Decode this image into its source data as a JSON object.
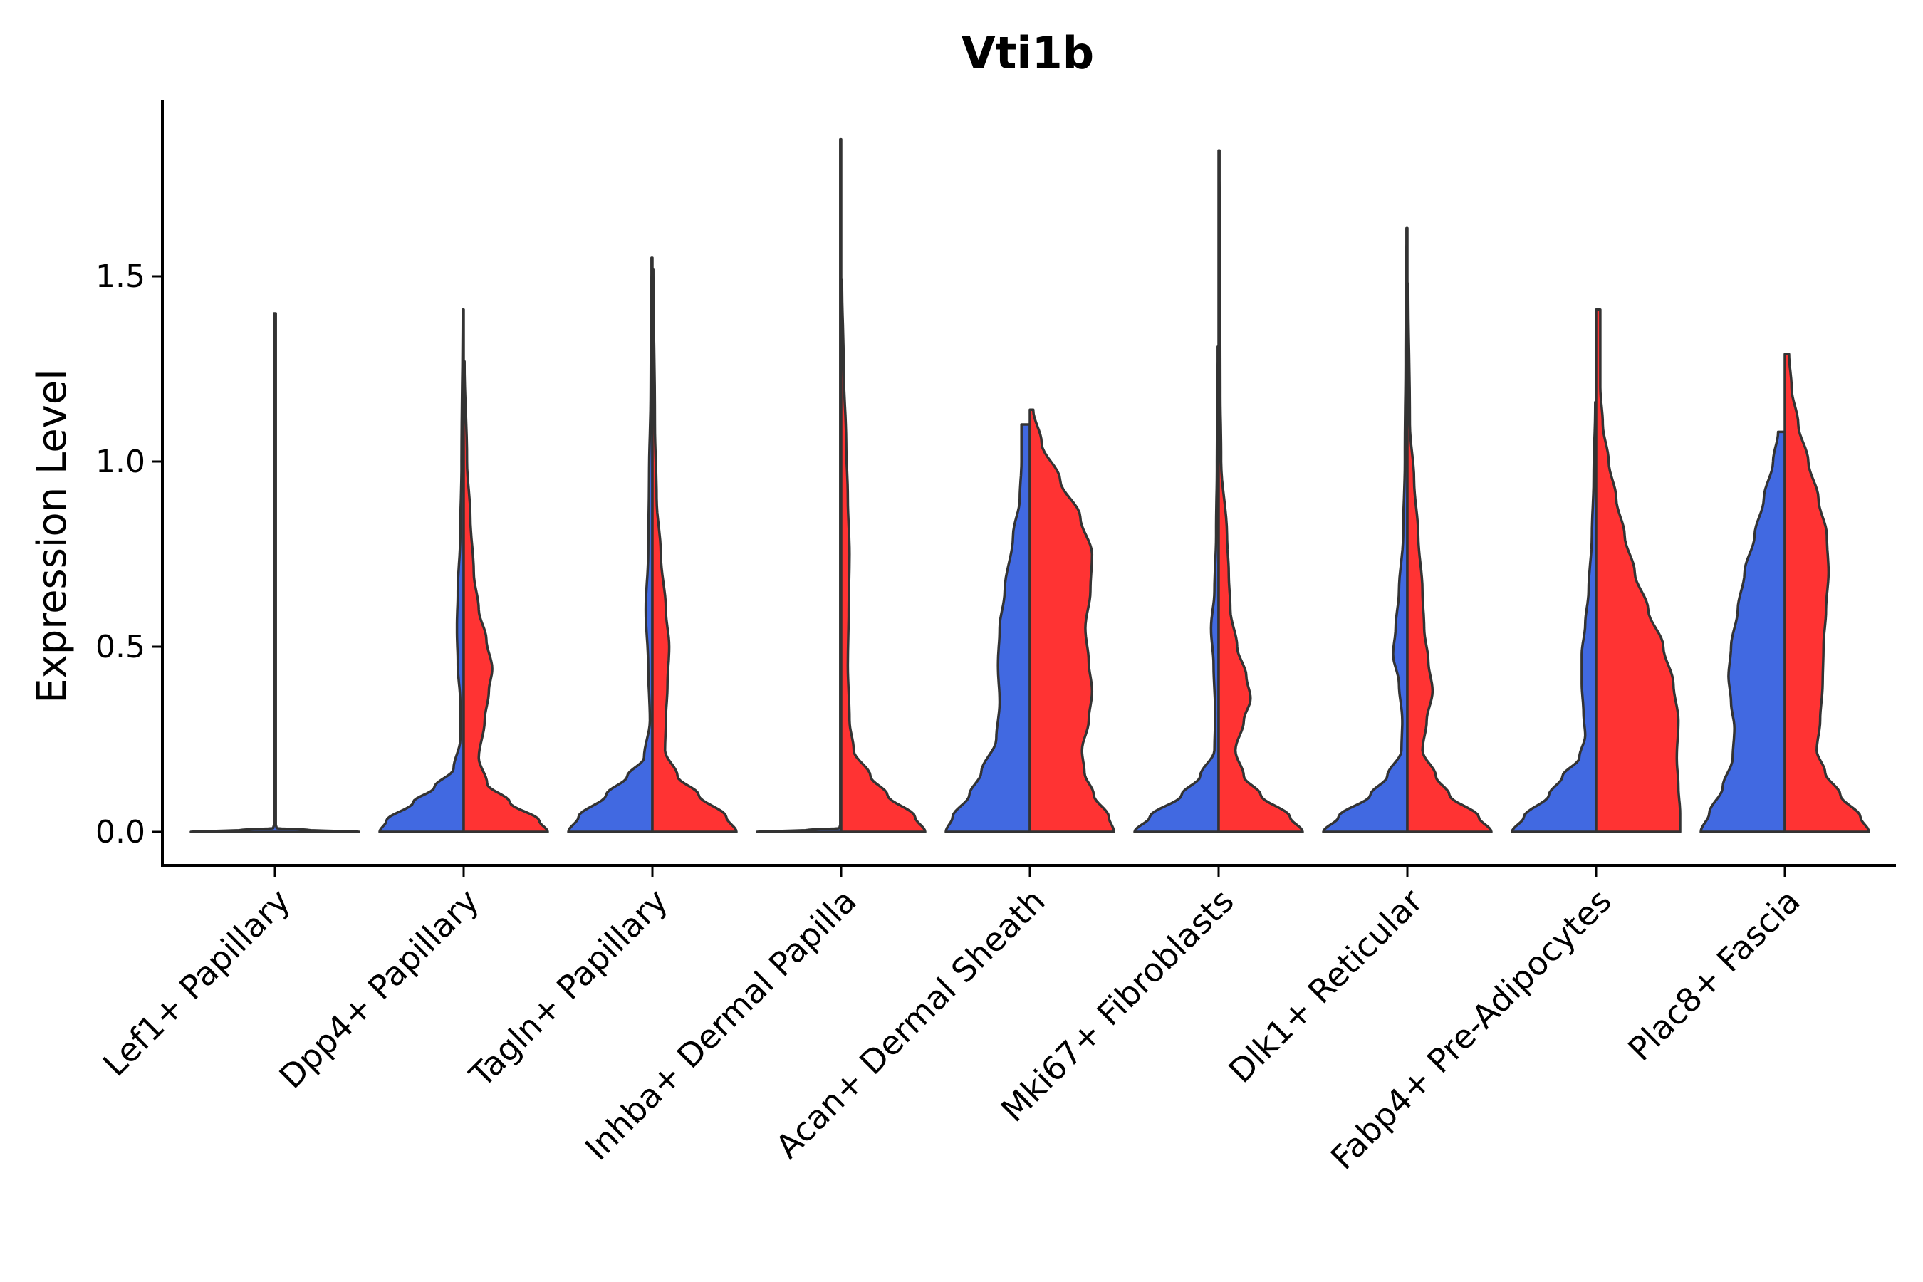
{
  "chart_data": {
    "type": "violin",
    "title": "Vti1b",
    "xlabel": "",
    "ylabel": "Expression Level",
    "ylim": [
      -0.1,
      1.98
    ],
    "yticks": [
      0.0,
      0.5,
      1.0,
      1.5
    ],
    "ytick_labels": [
      "0.0",
      "0.5",
      "1.0",
      "1.5"
    ],
    "grid": false,
    "legend": "none",
    "split": true,
    "series": [
      {
        "name": "group 1 (blue)",
        "color": "#4169E1"
      },
      {
        "name": "group 2 (red)",
        "color": "#FF3333"
      }
    ],
    "categories": [
      "Lef1+ Papillary",
      "Dpp4+ Papillary",
      "Tagln+ Papillary",
      "Inhba+ Dermal Papilla",
      "Acan+ Dermal Sheath",
      "Mki67+ Fibroblasts",
      "Dlk1+ Reticular",
      "Fabp4+ Pre-Adipocytes",
      "Plac8+ Fascia"
    ],
    "violins": [
      {
        "category": "Lef1+ Papillary",
        "series": "all",
        "color": "#4169E1",
        "max": 1.4,
        "profile": [
          [
            0.0,
            1.0
          ],
          [
            0.005,
            0.4
          ],
          [
            0.01,
            0.02
          ],
          [
            0.02,
            0.01
          ],
          [
            1.4,
            0.01
          ]
        ]
      },
      {
        "category": "Dpp4+ Papillary",
        "series": "group 1 (blue)",
        "color": "#4169E1",
        "max": 1.41,
        "profile": [
          [
            0.0,
            1.0
          ],
          [
            0.03,
            0.92
          ],
          [
            0.08,
            0.6
          ],
          [
            0.12,
            0.35
          ],
          [
            0.17,
            0.12
          ],
          [
            0.25,
            0.04
          ],
          [
            0.35,
            0.04
          ],
          [
            0.45,
            0.07
          ],
          [
            0.55,
            0.08
          ],
          [
            0.65,
            0.07
          ],
          [
            0.8,
            0.04
          ],
          [
            1.0,
            0.025
          ],
          [
            1.41,
            0.01
          ]
        ]
      },
      {
        "category": "Dpp4+ Papillary",
        "series": "group 2 (red)",
        "color": "#FF3333",
        "max": 1.27,
        "profile": [
          [
            0.0,
            1.0
          ],
          [
            0.03,
            0.9
          ],
          [
            0.08,
            0.55
          ],
          [
            0.13,
            0.28
          ],
          [
            0.2,
            0.18
          ],
          [
            0.3,
            0.25
          ],
          [
            0.38,
            0.3
          ],
          [
            0.44,
            0.34
          ],
          [
            0.52,
            0.27
          ],
          [
            0.6,
            0.18
          ],
          [
            0.7,
            0.12
          ],
          [
            0.85,
            0.08
          ],
          [
            1.0,
            0.04
          ],
          [
            1.27,
            0.01
          ]
        ]
      },
      {
        "category": "Tagln+ Papillary",
        "series": "group 1 (blue)",
        "color": "#4169E1",
        "max": 1.55,
        "profile": [
          [
            0.0,
            1.0
          ],
          [
            0.04,
            0.88
          ],
          [
            0.1,
            0.55
          ],
          [
            0.15,
            0.3
          ],
          [
            0.2,
            0.1
          ],
          [
            0.3,
            0.03
          ],
          [
            0.45,
            0.05
          ],
          [
            0.6,
            0.08
          ],
          [
            0.75,
            0.05
          ],
          [
            0.95,
            0.04
          ],
          [
            1.2,
            0.02
          ],
          [
            1.55,
            0.01
          ]
        ]
      },
      {
        "category": "Tagln+ Papillary",
        "series": "group 2 (red)",
        "color": "#FF3333",
        "max": 1.52,
        "profile": [
          [
            0.0,
            1.0
          ],
          [
            0.04,
            0.88
          ],
          [
            0.1,
            0.55
          ],
          [
            0.15,
            0.3
          ],
          [
            0.22,
            0.15
          ],
          [
            0.3,
            0.16
          ],
          [
            0.4,
            0.18
          ],
          [
            0.5,
            0.2
          ],
          [
            0.6,
            0.16
          ],
          [
            0.75,
            0.1
          ],
          [
            0.9,
            0.05
          ],
          [
            1.1,
            0.03
          ],
          [
            1.52,
            0.01
          ]
        ]
      },
      {
        "category": "Inhba+ Dermal Papilla",
        "series": "group 1 (blue)",
        "color": "#4169E1",
        "max": 1.87,
        "profile": [
          [
            0.0,
            1.0
          ],
          [
            0.005,
            0.4
          ],
          [
            0.01,
            0.02
          ],
          [
            0.02,
            0.01
          ],
          [
            1.87,
            0.01
          ]
        ]
      },
      {
        "category": "Inhba+ Dermal Papilla",
        "series": "group 2 (red)",
        "color": "#FF3333",
        "max": 1.49,
        "profile": [
          [
            0.0,
            1.0
          ],
          [
            0.04,
            0.88
          ],
          [
            0.1,
            0.55
          ],
          [
            0.15,
            0.35
          ],
          [
            0.22,
            0.15
          ],
          [
            0.3,
            0.1
          ],
          [
            0.45,
            0.08
          ],
          [
            0.6,
            0.09
          ],
          [
            0.75,
            0.1
          ],
          [
            0.9,
            0.08
          ],
          [
            1.05,
            0.06
          ],
          [
            1.25,
            0.03
          ],
          [
            1.49,
            0.01
          ]
        ]
      },
      {
        "category": "Acan+ Dermal Sheath",
        "series": "group 1 (blue)",
        "color": "#4169E1",
        "max": 1.1,
        "profile": [
          [
            0.0,
            1.0
          ],
          [
            0.04,
            0.92
          ],
          [
            0.1,
            0.72
          ],
          [
            0.16,
            0.58
          ],
          [
            0.25,
            0.4
          ],
          [
            0.35,
            0.36
          ],
          [
            0.45,
            0.38
          ],
          [
            0.55,
            0.36
          ],
          [
            0.65,
            0.3
          ],
          [
            0.8,
            0.2
          ],
          [
            0.9,
            0.12
          ],
          [
            1.0,
            0.1
          ],
          [
            1.1,
            0.1
          ]
        ]
      },
      {
        "category": "Acan+ Dermal Sheath",
        "series": "group 2 (red)",
        "color": "#FF3333",
        "max": 1.14,
        "profile": [
          [
            0.0,
            1.0
          ],
          [
            0.04,
            0.94
          ],
          [
            0.1,
            0.76
          ],
          [
            0.16,
            0.65
          ],
          [
            0.22,
            0.62
          ],
          [
            0.3,
            0.7
          ],
          [
            0.38,
            0.74
          ],
          [
            0.46,
            0.7
          ],
          [
            0.55,
            0.66
          ],
          [
            0.65,
            0.72
          ],
          [
            0.75,
            0.74
          ],
          [
            0.85,
            0.6
          ],
          [
            0.95,
            0.36
          ],
          [
            1.05,
            0.14
          ],
          [
            1.14,
            0.04
          ]
        ]
      },
      {
        "category": "Mki67+ Fibroblasts",
        "series": "group 1 (blue)",
        "color": "#4169E1",
        "max": 1.31,
        "profile": [
          [
            0.0,
            1.0
          ],
          [
            0.04,
            0.82
          ],
          [
            0.1,
            0.44
          ],
          [
            0.15,
            0.22
          ],
          [
            0.22,
            0.05
          ],
          [
            0.32,
            0.04
          ],
          [
            0.45,
            0.06
          ],
          [
            0.55,
            0.09
          ],
          [
            0.65,
            0.05
          ],
          [
            0.8,
            0.03
          ],
          [
            1.0,
            0.02
          ],
          [
            1.31,
            0.01
          ]
        ]
      },
      {
        "category": "Mki67+ Fibroblasts",
        "series": "group 2 (red)",
        "color": "#FF3333",
        "max": 1.84,
        "profile": [
          [
            0.0,
            1.0
          ],
          [
            0.04,
            0.85
          ],
          [
            0.1,
            0.5
          ],
          [
            0.15,
            0.3
          ],
          [
            0.22,
            0.2
          ],
          [
            0.3,
            0.3
          ],
          [
            0.36,
            0.38
          ],
          [
            0.42,
            0.33
          ],
          [
            0.5,
            0.22
          ],
          [
            0.6,
            0.14
          ],
          [
            0.7,
            0.12
          ],
          [
            0.8,
            0.1
          ],
          [
            1.0,
            0.03
          ],
          [
            1.2,
            0.02
          ],
          [
            1.84,
            0.01
          ]
        ]
      },
      {
        "category": "Dlk1+ Reticular",
        "series": "group 1 (blue)",
        "color": "#4169E1",
        "max": 1.63,
        "profile": [
          [
            0.0,
            1.0
          ],
          [
            0.04,
            0.82
          ],
          [
            0.1,
            0.44
          ],
          [
            0.15,
            0.24
          ],
          [
            0.22,
            0.07
          ],
          [
            0.3,
            0.06
          ],
          [
            0.4,
            0.1
          ],
          [
            0.48,
            0.17
          ],
          [
            0.55,
            0.14
          ],
          [
            0.65,
            0.1
          ],
          [
            0.8,
            0.05
          ],
          [
            1.0,
            0.03
          ],
          [
            1.3,
            0.02
          ],
          [
            1.63,
            0.01
          ]
        ]
      },
      {
        "category": "Dlk1+ Reticular",
        "series": "group 2 (red)",
        "color": "#FF3333",
        "max": 1.48,
        "profile": [
          [
            0.0,
            1.0
          ],
          [
            0.04,
            0.85
          ],
          [
            0.1,
            0.5
          ],
          [
            0.15,
            0.34
          ],
          [
            0.22,
            0.18
          ],
          [
            0.3,
            0.23
          ],
          [
            0.38,
            0.3
          ],
          [
            0.46,
            0.25
          ],
          [
            0.55,
            0.2
          ],
          [
            0.65,
            0.18
          ],
          [
            0.8,
            0.13
          ],
          [
            0.95,
            0.08
          ],
          [
            1.1,
            0.03
          ],
          [
            1.48,
            0.01
          ]
        ]
      },
      {
        "category": "Fabp4+ Pre-Adipocytes",
        "series": "group 1 (blue)",
        "color": "#4169E1",
        "max": 1.16,
        "profile": [
          [
            0.0,
            1.0
          ],
          [
            0.04,
            0.86
          ],
          [
            0.1,
            0.56
          ],
          [
            0.15,
            0.4
          ],
          [
            0.2,
            0.2
          ],
          [
            0.26,
            0.13
          ],
          [
            0.32,
            0.15
          ],
          [
            0.4,
            0.17
          ],
          [
            0.48,
            0.17
          ],
          [
            0.56,
            0.13
          ],
          [
            0.65,
            0.09
          ],
          [
            0.8,
            0.05
          ],
          [
            0.95,
            0.03
          ],
          [
            1.16,
            0.01
          ]
        ]
      },
      {
        "category": "Fabp4+ Pre-Adipocytes",
        "series": "group 2 (red)",
        "color": "#FF3333",
        "max": 1.41,
        "profile": [
          [
            0.0,
            1.0
          ],
          [
            0.05,
            1.0
          ],
          [
            0.12,
            0.98
          ],
          [
            0.2,
            0.96
          ],
          [
            0.3,
            0.98
          ],
          [
            0.4,
            0.92
          ],
          [
            0.5,
            0.8
          ],
          [
            0.6,
            0.62
          ],
          [
            0.7,
            0.46
          ],
          [
            0.8,
            0.34
          ],
          [
            0.9,
            0.24
          ],
          [
            1.0,
            0.15
          ],
          [
            1.1,
            0.08
          ],
          [
            1.2,
            0.05
          ],
          [
            1.41,
            0.05
          ]
        ]
      },
      {
        "category": "Plac8+ Fascia",
        "series": "group 1 (blue)",
        "color": "#4169E1",
        "max": 1.08,
        "profile": [
          [
            0.0,
            1.0
          ],
          [
            0.05,
            0.9
          ],
          [
            0.12,
            0.74
          ],
          [
            0.2,
            0.62
          ],
          [
            0.28,
            0.6
          ],
          [
            0.35,
            0.64
          ],
          [
            0.42,
            0.67
          ],
          [
            0.5,
            0.64
          ],
          [
            0.6,
            0.56
          ],
          [
            0.7,
            0.48
          ],
          [
            0.8,
            0.36
          ],
          [
            0.9,
            0.25
          ],
          [
            1.0,
            0.14
          ],
          [
            1.08,
            0.08
          ]
        ]
      },
      {
        "category": "Plac8+ Fascia",
        "series": "group 2 (red)",
        "color": "#FF3333",
        "max": 1.29,
        "profile": [
          [
            0.0,
            1.0
          ],
          [
            0.04,
            0.9
          ],
          [
            0.1,
            0.66
          ],
          [
            0.16,
            0.48
          ],
          [
            0.22,
            0.38
          ],
          [
            0.3,
            0.42
          ],
          [
            0.4,
            0.45
          ],
          [
            0.5,
            0.46
          ],
          [
            0.6,
            0.49
          ],
          [
            0.7,
            0.52
          ],
          [
            0.8,
            0.5
          ],
          [
            0.9,
            0.4
          ],
          [
            1.0,
            0.28
          ],
          [
            1.1,
            0.16
          ],
          [
            1.2,
            0.08
          ],
          [
            1.29,
            0.05
          ]
        ]
      }
    ]
  }
}
